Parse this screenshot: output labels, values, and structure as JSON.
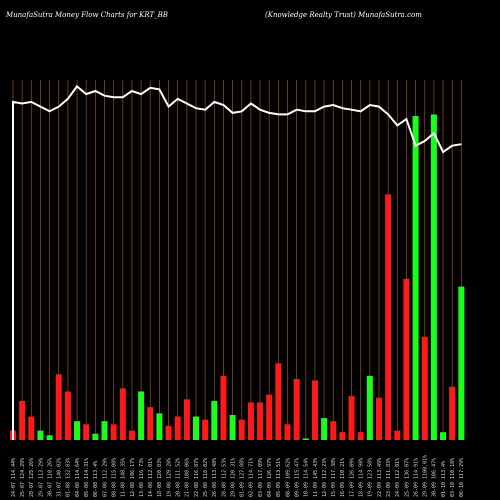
{
  "header": {
    "left": "MunafaSutra  Money Flow  Charts for KRT_BB",
    "right": "(Knowledge     Realty Trust) MunafaSutra.com"
  },
  "colors": {
    "background": "#000000",
    "grid": "#8a4b12",
    "up": "#19ff19",
    "down": "#ff1a1a",
    "price_line": "#ffffff"
  },
  "chart_data": {
    "type": "bar",
    "title": "MunafaSutra  Money Flow  Charts for KRT_BB",
    "subtitle": "(Knowledge     Realty Trust) MunafaSutra.com",
    "grid": true,
    "categories": [
      "24-07 114.44%",
      "25-07 124.29%",
      "28-07 125.26%",
      "29-07 113.29%",
      "30-07 110.26%",
      "31-07 140.02%",
      "01-08 132.83%",
      "04-08 114.64%",
      "05-08 114.31%",
      "06-08 113.4%",
      "07-08 112.29%",
      "08-08 115.08%",
      "11-08 148.35%",
      "12-08 106.17%",
      "13-08 116.73%",
      "14-08 112.01%",
      "18-08 120.83%",
      "19-08 129.28%",
      "20-08 111.52%",
      "21-08 108.06%",
      "22-08 116.87%",
      "25-08 118.02%",
      "26-08 113.48%",
      "28-08 112.53%",
      "29-08 120.31%",
      "01-09 127.88%",
      "02-09 114.71%",
      "03-09 117.09%",
      "04-09 126.97%",
      "05-09 113.51%",
      "08-09 109.62%",
      "09-09 115.47%",
      "10-09 114.54%",
      "11-09 145.43%",
      "12-09 112.23%",
      "15-09 117.38%",
      "16-09 110.21%",
      "17-09 126.09%",
      "18-09 114.98%",
      "19-09 123.58%",
      "22-09 113.49%",
      "23-09 111.83%",
      "24-09 112.01%",
      "25-09 136.07%",
      "26-09 114.91%",
      "29-09 1100.01%",
      "30-09 106.47%",
      "01-10 113.4%",
      "03-10 110.18%",
      "06-10 117.29%"
    ],
    "series": [
      {
        "values": [
          6,
          25,
          15,
          6,
          3,
          42,
          31,
          12,
          10,
          4,
          12,
          10,
          33,
          6,
          31,
          21,
          17,
          9,
          15,
          26,
          15,
          13,
          25,
          41,
          16,
          13,
          24,
          24,
          29,
          49,
          10,
          39,
          1,
          38,
          14,
          12,
          5,
          28,
          5,
          41,
          27,
          157,
          6,
          103,
          207,
          66,
          208,
          5,
          34,
          98
        ],
        "colors": [
          "down",
          "down",
          "down",
          "up",
          "up",
          "down",
          "down",
          "up",
          "down",
          "up",
          "up",
          "down",
          "down",
          "down",
          "up",
          "down",
          "up",
          "down",
          "down",
          "down",
          "up",
          "down",
          "up",
          "down",
          "up",
          "down",
          "down",
          "down",
          "down",
          "down",
          "down",
          "down",
          "up",
          "down",
          "up",
          "down",
          "down",
          "down",
          "down",
          "up",
          "down",
          "down",
          "down",
          "down",
          "up",
          "down",
          "up",
          "up",
          "down",
          "up"
        ]
      }
    ],
    "price_line": [
      216,
      215,
      216,
      213,
      210,
      213,
      218,
      226,
      221,
      223,
      220,
      219,
      219,
      223,
      221,
      225,
      224,
      213,
      218,
      215,
      212,
      211,
      216,
      214,
      209,
      210,
      215,
      211,
      209,
      208,
      208,
      211,
      210,
      210,
      213,
      214,
      212,
      211,
      210,
      214,
      213,
      208,
      201,
      205,
      188,
      191,
      196,
      184,
      188,
      189
    ],
    "ylim": [
      0,
      230
    ]
  }
}
